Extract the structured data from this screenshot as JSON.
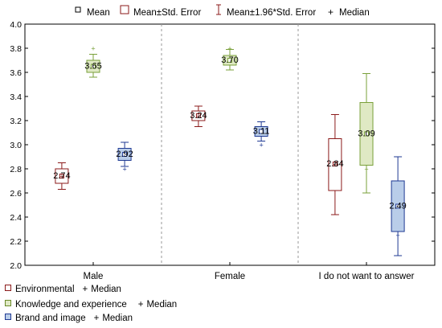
{
  "legend_top": {
    "items": [
      {
        "label": "Mean",
        "symbol": "square-icon"
      },
      {
        "label": "Mean±Std. Error",
        "symbol": "box-icon"
      },
      {
        "label": "Mean±1.96*Std. Error",
        "symbol": "whisker-icon"
      },
      {
        "label": "Median",
        "symbol": "plus-icon"
      }
    ]
  },
  "legend_bottom": {
    "items": [
      {
        "label": "Environmental",
        "median_label": "Median",
        "color": "#8b1a1a"
      },
      {
        "label": "Knowledge and experience",
        "median_label": "Median",
        "color": "#6a8a2a"
      },
      {
        "label": "Brand and image",
        "median_label": "Median",
        "color": "#1f3a93"
      }
    ]
  },
  "colors": {
    "Environmental": {
      "stroke": "#8b1a1a",
      "fill": "#ffffff"
    },
    "Knowledge and experience": {
      "stroke": "#7aa03a",
      "fill": "#dfe9c4"
    },
    "Brand and image": {
      "stroke": "#1f3a93",
      "fill": "#b9cde9"
    }
  },
  "chart_data": {
    "type": "box",
    "categories": [
      "Male",
      "Female",
      "I do not want to answer"
    ],
    "ylim": [
      2.0,
      4.0
    ],
    "yticks": [
      "2.0",
      "2.2",
      "2.4",
      "2.6",
      "2.8",
      "3.0",
      "3.2",
      "3.4",
      "3.6",
      "3.8",
      "4.0"
    ],
    "grid": false,
    "series": [
      {
        "name": "Environmental",
        "mean": [
          2.74,
          3.24,
          2.84
        ],
        "se_low": [
          2.68,
          3.2,
          2.62
        ],
        "se_high": [
          2.8,
          3.28,
          3.05
        ],
        "ci_low": [
          2.63,
          3.15,
          2.42
        ],
        "ci_high": [
          2.85,
          3.32,
          3.25
        ],
        "median": [
          2.74,
          3.24,
          2.84
        ],
        "labels": [
          "2.74",
          "3.24",
          "2.84"
        ]
      },
      {
        "name": "Knowledge and experience",
        "mean": [
          3.65,
          3.7,
          3.09
        ],
        "se_low": [
          3.6,
          3.66,
          2.83
        ],
        "se_high": [
          3.7,
          3.74,
          3.35
        ],
        "ci_low": [
          3.56,
          3.62,
          2.6
        ],
        "ci_high": [
          3.75,
          3.79,
          3.59
        ],
        "median": [
          3.8,
          3.8,
          2.8
        ],
        "labels": [
          "3.65",
          "3.70",
          "3.09"
        ]
      },
      {
        "name": "Brand and image",
        "mean": [
          2.92,
          3.11,
          2.49
        ],
        "se_low": [
          2.87,
          3.07,
          2.28
        ],
        "se_high": [
          2.97,
          3.15,
          2.7
        ],
        "ci_low": [
          2.82,
          3.03,
          2.08
        ],
        "ci_high": [
          3.02,
          3.19,
          2.9
        ],
        "median": [
          2.8,
          3.0,
          2.25
        ],
        "labels": [
          "2.92",
          "3.11",
          "2.49"
        ]
      }
    ]
  }
}
